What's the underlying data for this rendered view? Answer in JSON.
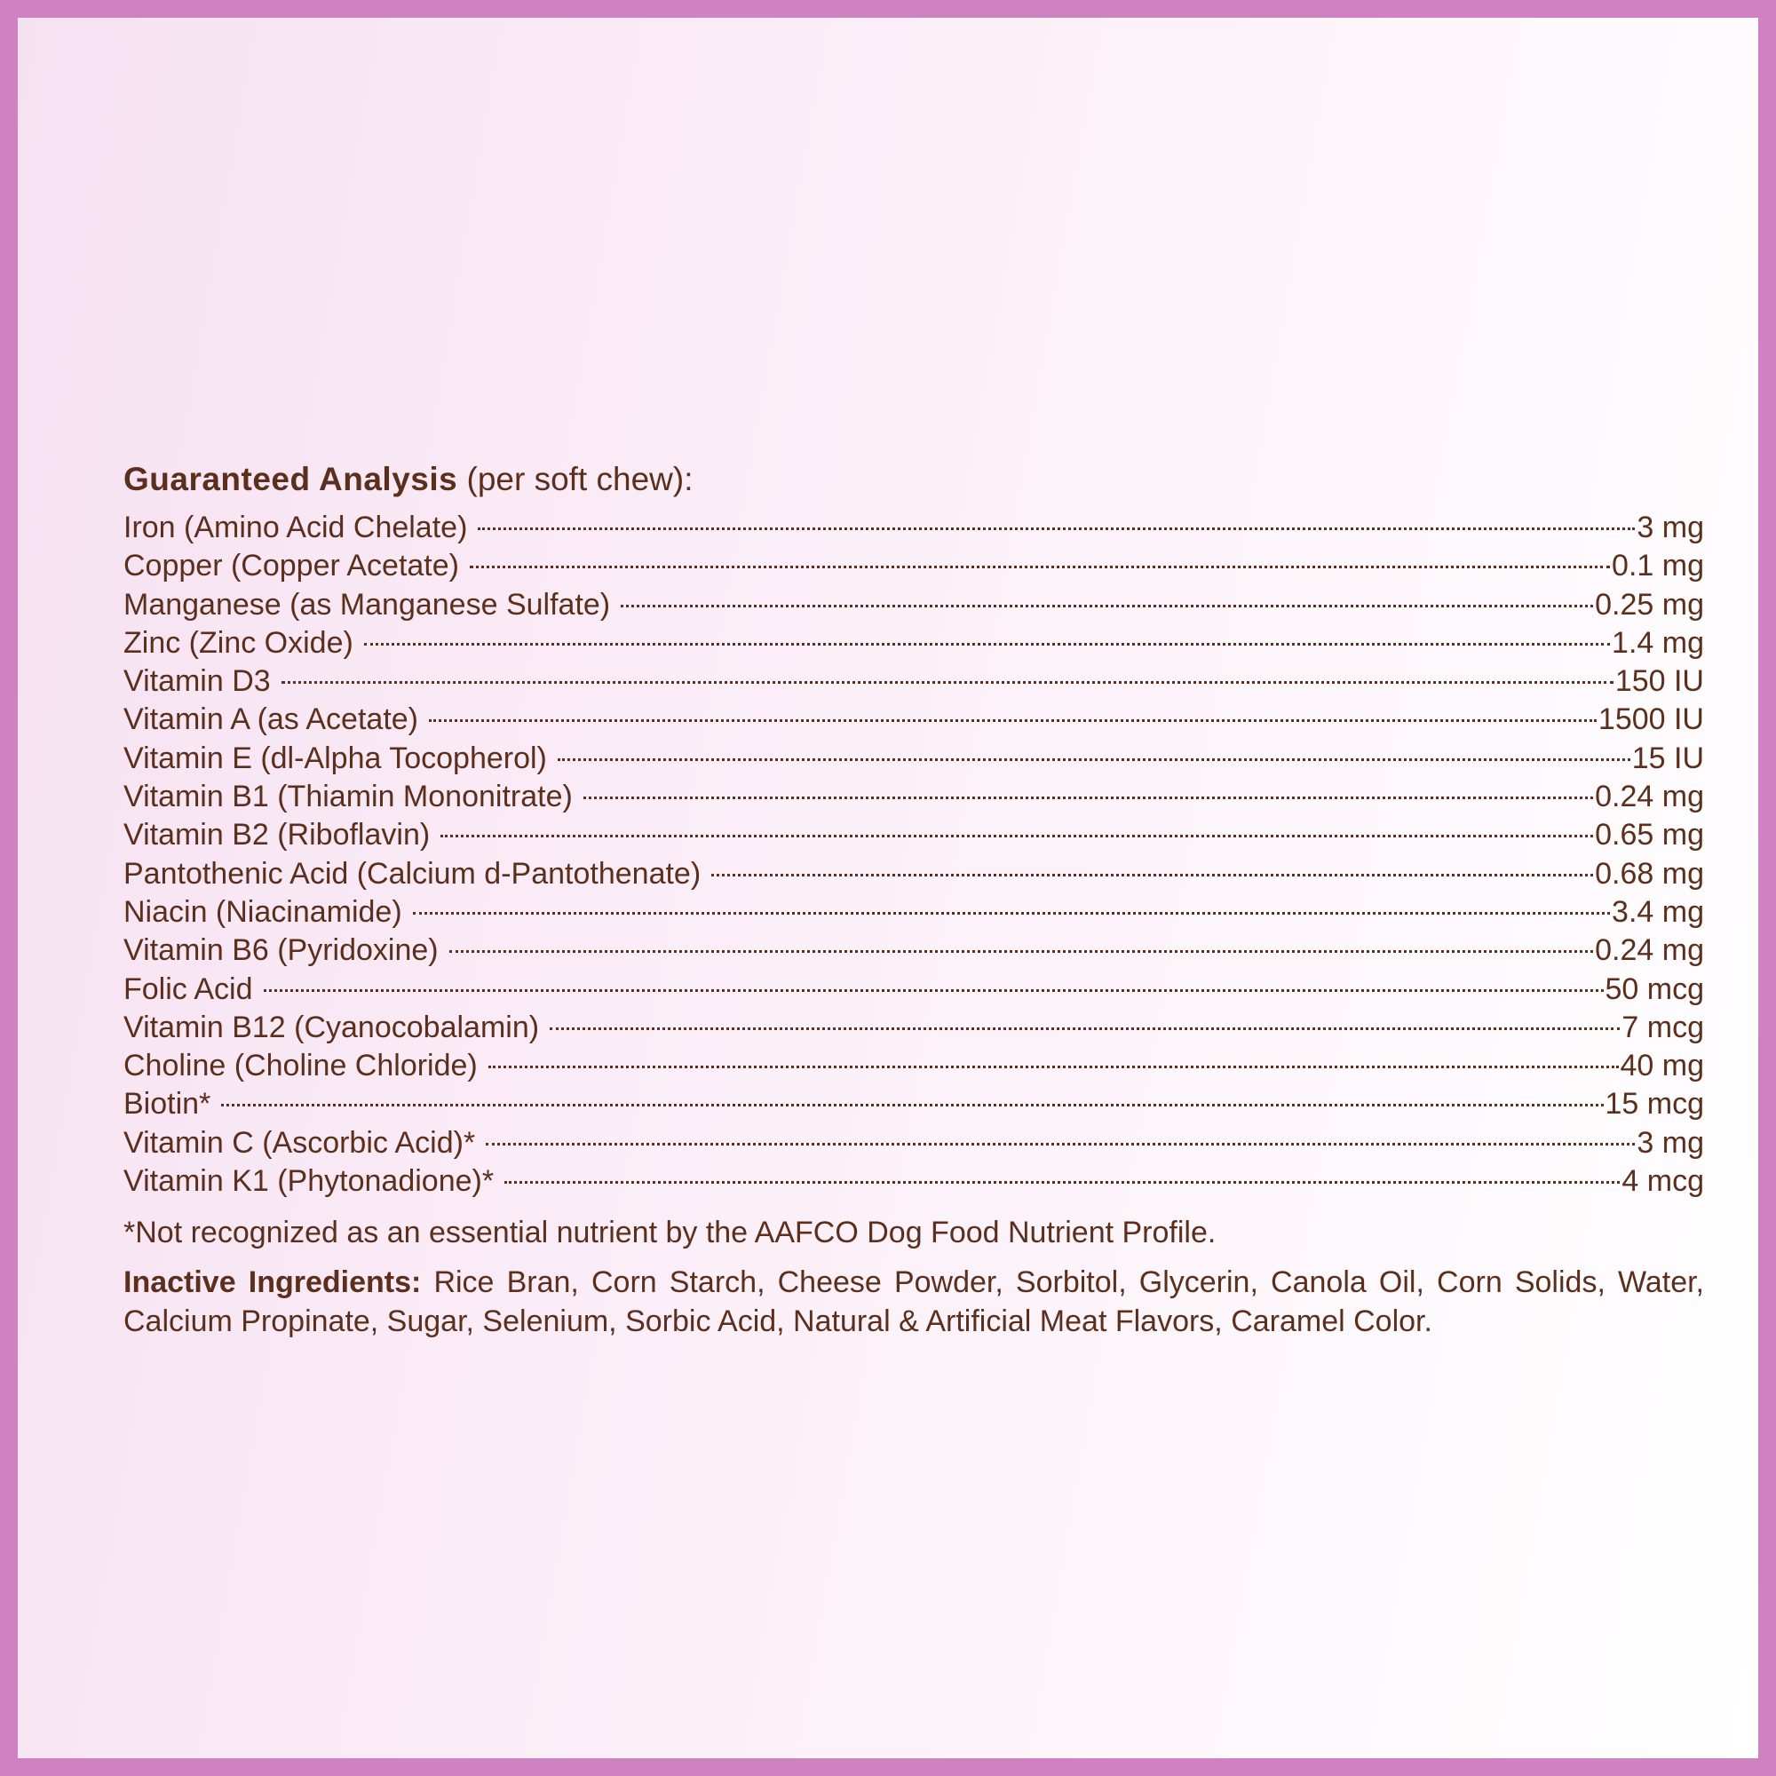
{
  "heading": {
    "bold": "Guaranteed Analysis",
    "rest": " (per soft chew):"
  },
  "rows": [
    {
      "label": "Iron (Amino Acid Chelate)",
      "value": "3 mg"
    },
    {
      "label": "Copper (Copper Acetate)",
      "value": "0.1 mg"
    },
    {
      "label": "Manganese (as Manganese Sulfate)",
      "value": "0.25 mg"
    },
    {
      "label": "Zinc  (Zinc  Oxide)",
      "value": "1.4 mg"
    },
    {
      "label": "Vitamin D3",
      "value": "150 IU"
    },
    {
      "label": "Vitamin A (as Acetate)",
      "value": "1500 IU"
    },
    {
      "label": "Vitamin E (dl-Alpha Tocopherol)",
      "value": "15 IU"
    },
    {
      "label": "Vitamin B1 (Thiamin Mononitrate)",
      "value": "0.24 mg"
    },
    {
      "label": "Vitamin B2 (Riboflavin)",
      "value": "0.65 mg"
    },
    {
      "label": "Pantothenic Acid (Calcium d-Pantothenate)",
      "value": "0.68 mg"
    },
    {
      "label": "Niacin (Niacinamide)",
      "value": "3.4 mg"
    },
    {
      "label": "Vitamin B6 (Pyridoxine)",
      "value": "0.24 mg"
    },
    {
      "label": "Folic Acid",
      "value": "50 mcg"
    },
    {
      "label": "Vitamin B12 (Cyanocobalamin)",
      "value": "7 mcg"
    },
    {
      "label": "Choline (Choline Chloride)",
      "value": "40 mg"
    },
    {
      "label": "Biotin*",
      "value": "15 mcg"
    },
    {
      "label": "Vitamin C (Ascorbic Acid)*",
      "value": "3 mg"
    },
    {
      "label": "Vitamin K1 (Phytonadione)*",
      "value": "4 mcg"
    }
  ],
  "footnote": "*Not recognized as an essential nutrient by the AAFCO Dog Food Nutrient Profile.",
  "inactive": {
    "label": "Inactive Ingredients:",
    "text": " Rice Bran, Corn Starch, Cheese Powder, Sorbitol, Glycerin, Canola Oil, Corn Solids, Water, Calcium Propinate, Sugar, Selenium, Sorbic Acid, Natural & Artificial Meat Flavors, Caramel Color."
  },
  "colors": {
    "border": "#cf82c2",
    "text": "#5b2f1c"
  }
}
